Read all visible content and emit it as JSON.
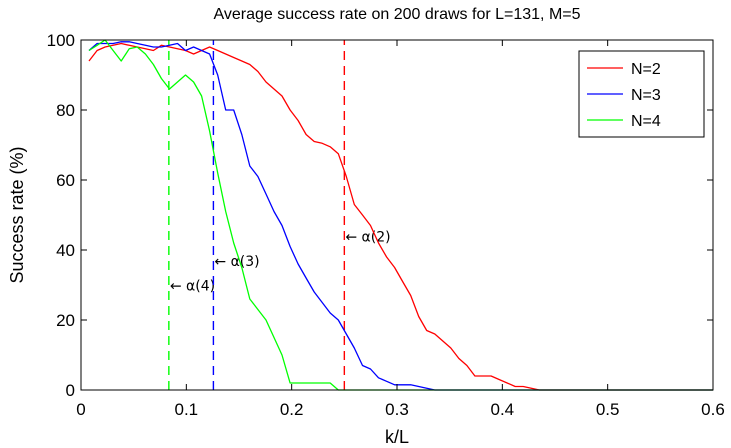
{
  "chart_data": {
    "type": "line",
    "title": "Average success rate on 200 draws for L=131, M=5",
    "xlabel": "k/L",
    "ylabel": "Success rate (%)",
    "xlim": [
      0,
      0.6
    ],
    "ylim": [
      0,
      100
    ],
    "xticks": [
      "0",
      "0.1",
      "0.2",
      "0.3",
      "0.4",
      "0.5",
      "0.6"
    ],
    "yticks": [
      "0",
      "20",
      "40",
      "60",
      "80",
      "100"
    ],
    "legend_position": "top-right",
    "grid": false,
    "series": [
      {
        "name": "N=2",
        "color": "#ff0000",
        "x": [
          0.0076,
          0.0153,
          0.0229,
          0.0305,
          0.0382,
          0.0458,
          0.0534,
          0.0611,
          0.0687,
          0.0763,
          0.084,
          0.0916,
          0.0992,
          0.1069,
          0.1145,
          0.1221,
          0.1298,
          0.1374,
          0.145,
          0.1527,
          0.1603,
          0.1679,
          0.1756,
          0.1832,
          0.1908,
          0.1985,
          0.2061,
          0.2137,
          0.2214,
          0.229,
          0.2366,
          0.2443,
          0.2519,
          0.2595,
          0.2672,
          0.2748,
          0.2824,
          0.2901,
          0.2977,
          0.3053,
          0.313,
          0.3206,
          0.3282,
          0.3359,
          0.3435,
          0.3511,
          0.3588,
          0.3664,
          0.374,
          0.3817,
          0.3893,
          0.3969,
          0.4046,
          0.4122,
          0.4198,
          0.4275,
          0.4351,
          0.4427,
          0.4504,
          0.458,
          0.4656,
          0.4733,
          0.4809,
          0.5,
          0.55,
          0.6
        ],
        "y": [
          94,
          97,
          98,
          98.5,
          99,
          98.5,
          98,
          97.5,
          97,
          98.5,
          98,
          97.5,
          97,
          96,
          97,
          98,
          97,
          96,
          95,
          94,
          93,
          91,
          88,
          86,
          84,
          80,
          77,
          73,
          71,
          70.5,
          69.5,
          67.5,
          61,
          53,
          50,
          47,
          42,
          38,
          35,
          31,
          27,
          21,
          17,
          16,
          14,
          12,
          9,
          7,
          4,
          4,
          4,
          3,
          2,
          1,
          1,
          0.5,
          0,
          0,
          0,
          0,
          0,
          0,
          0,
          0,
          0,
          0
        ]
      },
      {
        "name": "N=3",
        "color": "#0000ff",
        "x": [
          0.0076,
          0.0153,
          0.0229,
          0.0305,
          0.0382,
          0.0458,
          0.0534,
          0.0611,
          0.0687,
          0.0763,
          0.084,
          0.0916,
          0.0992,
          0.1069,
          0.1145,
          0.1221,
          0.1298,
          0.1374,
          0.145,
          0.1527,
          0.1603,
          0.1679,
          0.1756,
          0.1832,
          0.1908,
          0.1985,
          0.2061,
          0.2137,
          0.2214,
          0.229,
          0.2366,
          0.2443,
          0.2519,
          0.2595,
          0.2672,
          0.2748,
          0.2824,
          0.2901,
          0.2977,
          0.3053,
          0.313,
          0.3206,
          0.3282,
          0.3359,
          0.3435,
          0.4,
          0.5,
          0.6
        ],
        "y": [
          97,
          99,
          99,
          99,
          99.5,
          99.5,
          99,
          98.5,
          98,
          98,
          98.5,
          99,
          97,
          98,
          97,
          96,
          90,
          80,
          80,
          73,
          64,
          61,
          56,
          51,
          47,
          41,
          36,
          32,
          28,
          25,
          22,
          20,
          16,
          12,
          7,
          6,
          3.5,
          2.5,
          1.5,
          1.5,
          1.5,
          1,
          0.5,
          0,
          0,
          0,
          0,
          0
        ]
      },
      {
        "name": "N=4",
        "color": "#00ff00",
        "x": [
          0.0076,
          0.0153,
          0.0229,
          0.0305,
          0.0382,
          0.0458,
          0.0534,
          0.0611,
          0.0687,
          0.0763,
          0.084,
          0.0916,
          0.0992,
          0.1069,
          0.1145,
          0.1221,
          0.1298,
          0.1374,
          0.145,
          0.1527,
          0.1603,
          0.1679,
          0.1756,
          0.1832,
          0.1908,
          0.1985,
          0.2061,
          0.2137,
          0.2214,
          0.229,
          0.2366,
          0.2443,
          0.2519,
          0.3,
          0.4,
          0.5,
          0.6
        ],
        "y": [
          97,
          98.5,
          100,
          97,
          94,
          97.5,
          98,
          96,
          93,
          89,
          86,
          88,
          90,
          88,
          84,
          74,
          62,
          51,
          42,
          35,
          26,
          23,
          20,
          15,
          10,
          2,
          2,
          2,
          2,
          2,
          2,
          0,
          0,
          0,
          0,
          0,
          0
        ]
      }
    ],
    "markers": [
      {
        "x": 0.0834,
        "color": "#00ff00",
        "label": "← α(4)",
        "label_y": 28.5
      },
      {
        "x": 0.1257,
        "color": "#0000ff",
        "label": "← α(3)",
        "label_y": 35.5
      },
      {
        "x": 0.25,
        "color": "#ff0000",
        "label": "← α(2)",
        "label_y": 42.5
      }
    ]
  }
}
